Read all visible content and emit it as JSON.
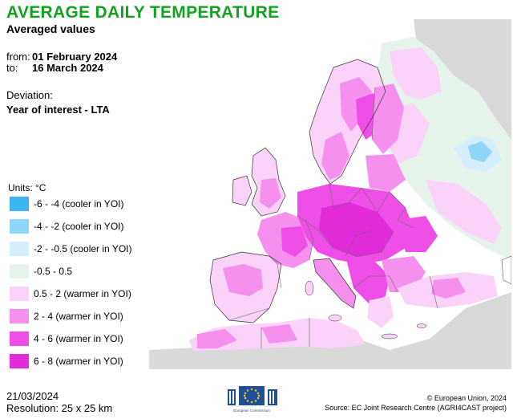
{
  "header": {
    "title": "AVERAGE DAILY TEMPERATURE",
    "subtitle": "Averaged values"
  },
  "period": {
    "from_label": "from:",
    "from_value": "01 February 2024",
    "to_label": "to:",
    "to_value": "16 March 2024"
  },
  "deviation": {
    "label": "Deviation:",
    "value": "Year of interest - LTA"
  },
  "legend": {
    "units": "Units: °C",
    "items": [
      {
        "label": "-6 - -4 (cooler in YOI)",
        "color": "#3bb6f2"
      },
      {
        "label": "-4 - -2 (cooler in YOI)",
        "color": "#8fd5f7"
      },
      {
        "label": "-2 - -0.5 (cooler in YOI)",
        "color": "#d4eefb"
      },
      {
        "label": "-0.5 - 0.5",
        "color": "#e6f3ea"
      },
      {
        "label": "0.5 - 2 (warmer in YOI)",
        "color": "#fbd3f8"
      },
      {
        "label": "2 - 4 (warmer in YOI)",
        "color": "#f690ef"
      },
      {
        "label": "4 - 6 (warmer in YOI)",
        "color": "#ee4ee6"
      },
      {
        "label": "6 - 8 (warmer in YOI)",
        "color": "#e22bd9"
      }
    ]
  },
  "footer": {
    "date": "21/03/2024",
    "resolution": "Resolution: 25 x 25 km",
    "copyright": "© European Union, 2024",
    "source": "Source: EC Joint Research Centre (AGRI4CAST project)",
    "logo_caption": "European Commission"
  }
}
